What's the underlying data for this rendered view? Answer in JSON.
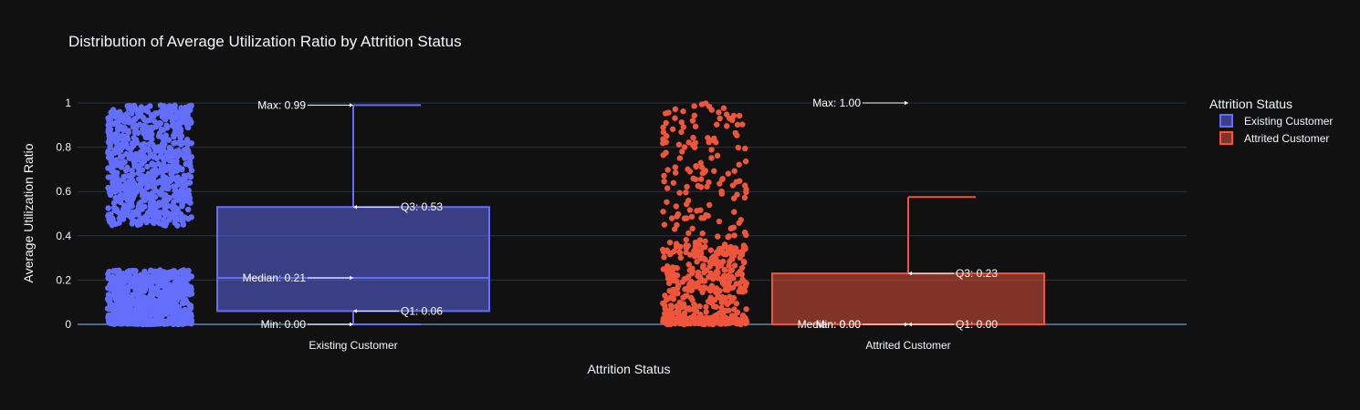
{
  "chart_data": {
    "type": "box",
    "title": "Distribution of Average Utilization Ratio by Attrition Status",
    "xlabel": "Attrition Status",
    "ylabel": "Average Utilization Ratio",
    "ylim": [
      0,
      1
    ],
    "yticks": [
      "0",
      "0.2",
      "0.4",
      "0.6",
      "0.8",
      "1"
    ],
    "y_tick_values": [
      0,
      0.2,
      0.4,
      0.6,
      0.8,
      1
    ],
    "grid": true,
    "categories": [
      "Existing Customer",
      "Attrited Customer"
    ],
    "legend": {
      "title": "Attrition Status",
      "position": "top-right",
      "items": [
        "Existing Customer",
        "Attrited Customer"
      ]
    },
    "series": [
      {
        "name": "Existing Customer",
        "color": "#636efa",
        "min": 0.0,
        "q1": 0.06,
        "median": 0.21,
        "q3": 0.53,
        "max": 0.99,
        "upper_fence": 0.99,
        "labels": {
          "max": "Max: 0.99",
          "q3": "Q3: 0.53",
          "median": "Median: 0.21",
          "q1": "Q1: 0.06",
          "min": "Min: 0.00"
        }
      },
      {
        "name": "Attrited Customer",
        "color": "#ef553b",
        "min": 0.0,
        "q1": 0.0,
        "median": 0.0,
        "q3": 0.23,
        "max": 1.0,
        "upper_fence": 0.575,
        "labels": {
          "max": "Max: 1.00",
          "q3": "Q3: 0.23",
          "median": "Median: 0.00",
          "q1": "Q1: 0.00",
          "min": "Min: 0.00"
        }
      }
    ]
  }
}
